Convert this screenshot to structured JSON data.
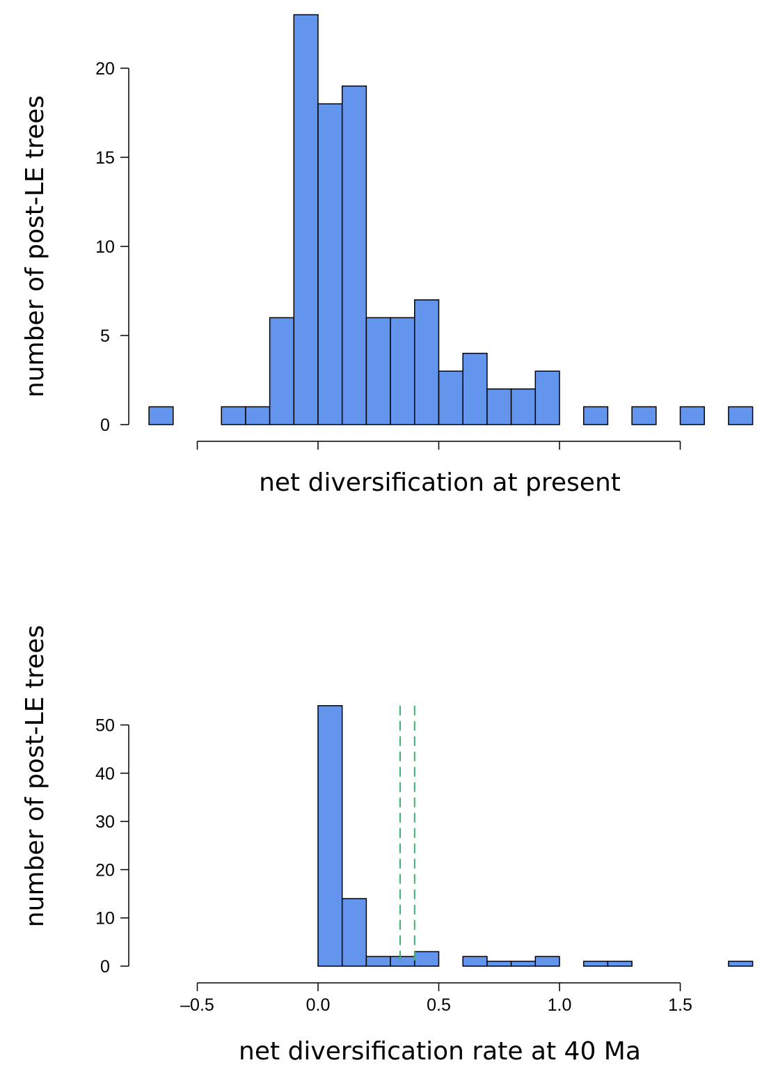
{
  "chart_data": [
    {
      "type": "bar",
      "subtype": "histogram",
      "xlabel": "net diversification at present",
      "ylabel": "number of post-LE trees",
      "xlim": [
        -0.7,
        1.8
      ],
      "ylim": [
        0,
        23
      ],
      "x_ticks": [
        "-0.5",
        "0.0",
        "0.5",
        "1.0",
        "1.5"
      ],
      "x_tick_labels_shown": false,
      "y_ticks": [
        "0",
        "5",
        "10",
        "15",
        "20"
      ],
      "bar_color": "#6495ED",
      "bin_width": 0.1,
      "bins": [
        {
          "start": -0.7,
          "end": -0.6,
          "count": 1
        },
        {
          "start": -0.4,
          "end": -0.3,
          "count": 1
        },
        {
          "start": -0.3,
          "end": -0.2,
          "count": 1
        },
        {
          "start": -0.2,
          "end": -0.1,
          "count": 6
        },
        {
          "start": -0.1,
          "end": 0.0,
          "count": 23
        },
        {
          "start": 0.0,
          "end": 0.1,
          "count": 18
        },
        {
          "start": 0.1,
          "end": 0.2,
          "count": 19
        },
        {
          "start": 0.2,
          "end": 0.3,
          "count": 6
        },
        {
          "start": 0.3,
          "end": 0.4,
          "count": 6
        },
        {
          "start": 0.4,
          "end": 0.5,
          "count": 7
        },
        {
          "start": 0.5,
          "end": 0.6,
          "count": 3
        },
        {
          "start": 0.6,
          "end": 0.7,
          "count": 4
        },
        {
          "start": 0.7,
          "end": 0.8,
          "count": 2
        },
        {
          "start": 0.8,
          "end": 0.9,
          "count": 2
        },
        {
          "start": 0.9,
          "end": 1.0,
          "count": 3
        },
        {
          "start": 1.1,
          "end": 1.2,
          "count": 1
        },
        {
          "start": 1.3,
          "end": 1.4,
          "count": 1
        },
        {
          "start": 1.5,
          "end": 1.6,
          "count": 1
        },
        {
          "start": 1.7,
          "end": 1.8,
          "count": 1
        }
      ],
      "vlines": []
    },
    {
      "type": "bar",
      "subtype": "histogram",
      "xlabel": "net diversification rate at 40 Ma",
      "ylabel": "number of post-LE trees",
      "xlim": [
        -0.7,
        1.8
      ],
      "ylim": [
        0,
        54
      ],
      "x_ticks": [
        "–0.5",
        "0.0",
        "0.5",
        "1.0",
        "1.5"
      ],
      "x_tick_labels_shown": true,
      "y_ticks": [
        "0",
        "10",
        "20",
        "30",
        "40",
        "50"
      ],
      "bar_color": "#6495ED",
      "bin_width": 0.1,
      "bins": [
        {
          "start": 0.0,
          "end": 0.1,
          "count": 54
        },
        {
          "start": 0.1,
          "end": 0.2,
          "count": 14
        },
        {
          "start": 0.2,
          "end": 0.3,
          "count": 2
        },
        {
          "start": 0.3,
          "end": 0.4,
          "count": 2
        },
        {
          "start": 0.4,
          "end": 0.5,
          "count": 3
        },
        {
          "start": 0.6,
          "end": 0.7,
          "count": 2
        },
        {
          "start": 0.7,
          "end": 0.8,
          "count": 1
        },
        {
          "start": 0.8,
          "end": 0.9,
          "count": 1
        },
        {
          "start": 0.9,
          "end": 1.0,
          "count": 2
        },
        {
          "start": 1.1,
          "end": 1.2,
          "count": 1
        },
        {
          "start": 1.2,
          "end": 1.3,
          "count": 1
        },
        {
          "start": 1.7,
          "end": 1.8,
          "count": 1
        }
      ],
      "vlines": [
        {
          "x": 0.34,
          "style": "dashed",
          "color": "#3CB371"
        },
        {
          "x": 0.4,
          "style": "dashed",
          "color": "#3CB371"
        }
      ]
    }
  ]
}
